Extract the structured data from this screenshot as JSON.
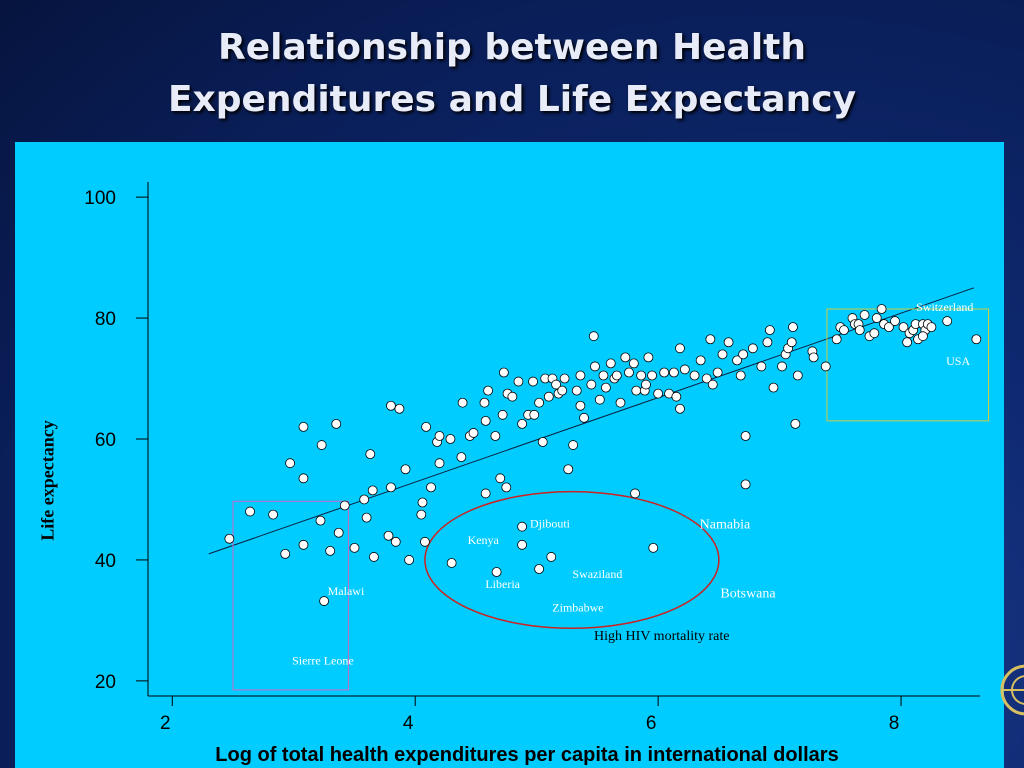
{
  "slide": {
    "title_line1": "Relationship between Health",
    "title_line2": "Expenditures and Life Expectancy"
  },
  "colors": {
    "background": "#0a1f5a",
    "panel": "#00ccff",
    "ellipse": "#cc2222",
    "box_high": "#cccc44",
    "box_low": "#cc66cc"
  },
  "chart_data": {
    "type": "scatter",
    "xlabel": "Log of total health expenditures per capita in international dollars",
    "ylabel": "Life expectancy",
    "xlim": [
      1.8,
      8.65
    ],
    "ylim": [
      17.5,
      102.5
    ],
    "xticks": [
      2,
      4,
      6,
      8
    ],
    "yticks": [
      20,
      40,
      60,
      80,
      100
    ],
    "grid": false,
    "trendline": [
      [
        2.3,
        41
      ],
      [
        8.6,
        85
      ]
    ],
    "points": [
      [
        2.47,
        43.5
      ],
      [
        2.64,
        48
      ],
      [
        2.83,
        47.5
      ],
      [
        2.93,
        41
      ],
      [
        2.97,
        56
      ],
      [
        3.08,
        62
      ],
      [
        3.08,
        53.5
      ],
      [
        3.08,
        42.5
      ],
      [
        3.22,
        46.5
      ],
      [
        3.23,
        59
      ],
      [
        3.25,
        33.2
      ],
      [
        3.3,
        41.5
      ],
      [
        3.35,
        62.5
      ],
      [
        3.37,
        44.5
      ],
      [
        3.42,
        49
      ],
      [
        3.5,
        42
      ],
      [
        3.58,
        50
      ],
      [
        3.6,
        47
      ],
      [
        3.63,
        57.5
      ],
      [
        3.65,
        51.5
      ],
      [
        3.66,
        40.5
      ],
      [
        3.78,
        44
      ],
      [
        3.8,
        52
      ],
      [
        3.8,
        65.5
      ],
      [
        3.84,
        43
      ],
      [
        3.87,
        65
      ],
      [
        3.92,
        55
      ],
      [
        3.95,
        40
      ],
      [
        4.05,
        47.5
      ],
      [
        4.06,
        49.5
      ],
      [
        4.08,
        43
      ],
      [
        4.09,
        62
      ],
      [
        4.13,
        52
      ],
      [
        4.18,
        59.5
      ],
      [
        4.2,
        56
      ],
      [
        4.2,
        60.5
      ],
      [
        4.29,
        60
      ],
      [
        4.3,
        39.5
      ],
      [
        4.38,
        57
      ],
      [
        4.39,
        66
      ],
      [
        4.45,
        60.5
      ],
      [
        4.48,
        61
      ],
      [
        4.57,
        66
      ],
      [
        4.58,
        51
      ],
      [
        4.58,
        63
      ],
      [
        4.6,
        68
      ],
      [
        4.66,
        60.5
      ],
      [
        4.7,
        53.5
      ],
      [
        4.72,
        64
      ],
      [
        4.73,
        71
      ],
      [
        4.75,
        52
      ],
      [
        4.76,
        67.5
      ],
      [
        4.8,
        67
      ],
      [
        4.85,
        69.5
      ],
      [
        4.88,
        62.5
      ],
      [
        4.93,
        64
      ],
      [
        4.97,
        69.5
      ],
      [
        4.98,
        64
      ],
      [
        5.02,
        66
      ],
      [
        5.05,
        59.5
      ],
      [
        5.07,
        70
      ],
      [
        5.1,
        67
      ],
      [
        5.13,
        70
      ],
      [
        5.16,
        69
      ],
      [
        5.18,
        67.5
      ],
      [
        5.21,
        68
      ],
      [
        5.23,
        70
      ],
      [
        5.26,
        55
      ],
      [
        5.3,
        59
      ],
      [
        5.33,
        68
      ],
      [
        5.36,
        70.5
      ],
      [
        5.36,
        65.5
      ],
      [
        5.39,
        63.5
      ],
      [
        5.45,
        69
      ],
      [
        5.47,
        77
      ],
      [
        5.48,
        72
      ],
      [
        5.52,
        66.5
      ],
      [
        5.55,
        70.5
      ],
      [
        5.57,
        68.5
      ],
      [
        5.61,
        72.5
      ],
      [
        5.64,
        70
      ],
      [
        5.66,
        70.5
      ],
      [
        5.69,
        66
      ],
      [
        5.73,
        73.5
      ],
      [
        5.76,
        71
      ],
      [
        5.8,
        72.5
      ],
      [
        5.82,
        68
      ],
      [
        5.86,
        70.5
      ],
      [
        5.89,
        68
      ],
      [
        5.9,
        69
      ],
      [
        5.92,
        73.5
      ],
      [
        5.95,
        70.5
      ],
      [
        6.0,
        67.5
      ],
      [
        6.05,
        71
      ],
      [
        6.09,
        67.5
      ],
      [
        6.13,
        71
      ],
      [
        6.15,
        67
      ],
      [
        6.18,
        65
      ],
      [
        6.18,
        75
      ],
      [
        6.22,
        71.5
      ],
      [
        6.3,
        70.5
      ],
      [
        6.35,
        73
      ],
      [
        6.4,
        70
      ],
      [
        6.43,
        76.5
      ],
      [
        6.45,
        69
      ],
      [
        6.49,
        71
      ],
      [
        6.53,
        74
      ],
      [
        6.58,
        76
      ],
      [
        6.65,
        73
      ],
      [
        6.68,
        70.5
      ],
      [
        6.7,
        74
      ],
      [
        6.72,
        60.5
      ],
      [
        6.72,
        52.5
      ],
      [
        6.78,
        75
      ],
      [
        6.85,
        72
      ],
      [
        6.9,
        76
      ],
      [
        6.92,
        78
      ],
      [
        6.95,
        68.5
      ],
      [
        7.02,
        72
      ],
      [
        7.05,
        74
      ],
      [
        7.07,
        75
      ],
      [
        7.1,
        76
      ],
      [
        7.11,
        78.5
      ],
      [
        7.13,
        62.5
      ],
      [
        7.15,
        70.5
      ],
      [
        7.27,
        74.5
      ],
      [
        7.28,
        73.5
      ],
      [
        7.38,
        72
      ],
      [
        7.47,
        76.5
      ],
      [
        7.5,
        78.5
      ],
      [
        7.53,
        78
      ],
      [
        7.6,
        80
      ],
      [
        7.62,
        79
      ],
      [
        7.65,
        79
      ],
      [
        7.66,
        78
      ],
      [
        7.7,
        80.5
      ],
      [
        7.74,
        77
      ],
      [
        7.78,
        77.5
      ],
      [
        7.8,
        80
      ],
      [
        7.84,
        81.5
      ],
      [
        7.86,
        79
      ],
      [
        7.9,
        78.5
      ],
      [
        7.95,
        79.5
      ],
      [
        8.02,
        78.5
      ],
      [
        8.05,
        76
      ],
      [
        8.07,
        77.5
      ],
      [
        8.1,
        78
      ],
      [
        8.12,
        79
      ],
      [
        8.14,
        76.5
      ],
      [
        8.18,
        79
      ],
      [
        8.2,
        78
      ],
      [
        8.22,
        79
      ],
      [
        8.25,
        78.5
      ],
      [
        8.18,
        77
      ],
      [
        8.38,
        79.5
      ],
      [
        8.62,
        76.5
      ],
      [
        4.67,
        38
      ],
      [
        4.88,
        45.5
      ],
      [
        4.88,
        42.5
      ],
      [
        5.02,
        38.5
      ],
      [
        5.12,
        40.5
      ],
      [
        5.81,
        51
      ],
      [
        5.96,
        42
      ]
    ],
    "annotations": [
      {
        "text": "Switzerland",
        "x": 8.36,
        "y": 81.2,
        "size": "s",
        "color": "#ffffff"
      },
      {
        "text": "USA",
        "x": 8.47,
        "y": 72.2,
        "size": "s",
        "color": "#ffffff"
      },
      {
        "text": "Djibouti",
        "x": 5.11,
        "y": 45.4,
        "size": "s",
        "color": "#ffffff"
      },
      {
        "text": "Kenya",
        "x": 4.56,
        "y": 42.6,
        "size": "s",
        "color": "#ffffff"
      },
      {
        "text": "Liberia",
        "x": 4.72,
        "y": 35.4,
        "size": "s",
        "color": "#ffffff"
      },
      {
        "text": "Swaziland",
        "x": 5.5,
        "y": 37.0,
        "size": "s",
        "color": "#ffffff"
      },
      {
        "text": "Zimbabwe",
        "x": 5.34,
        "y": 31.5,
        "size": "s",
        "color": "#ffffff"
      },
      {
        "text": "Malawi",
        "x": 3.43,
        "y": 34.2,
        "size": "s",
        "color": "#ffffff"
      },
      {
        "text": "Sierre Leone",
        "x": 3.24,
        "y": 22.7,
        "size": "s",
        "color": "#ffffff"
      },
      {
        "text": "Namabia",
        "x": 6.55,
        "y": 45.2,
        "size": "m",
        "color": "#ffffff"
      },
      {
        "text": "Botswana",
        "x": 6.74,
        "y": 33.8,
        "size": "m",
        "color": "#ffffff"
      },
      {
        "text": "High HIV mortality rate",
        "x": 6.03,
        "y": 26.8,
        "size": "m",
        "color": "#000000"
      }
    ],
    "regions": [
      {
        "shape": "rect",
        "x0": 7.39,
        "x1": 8.72,
        "y0": 63,
        "y1": 81.5,
        "color": "#cccc44"
      },
      {
        "shape": "rect",
        "x0": 2.5,
        "x1": 3.45,
        "y0": 18.5,
        "y1": 49.7,
        "color": "#cc66cc"
      },
      {
        "shape": "ellipse",
        "cx": 5.29,
        "cy": 40.0,
        "rx": 1.21,
        "ry": 11.3,
        "color": "#cc2222"
      }
    ]
  }
}
